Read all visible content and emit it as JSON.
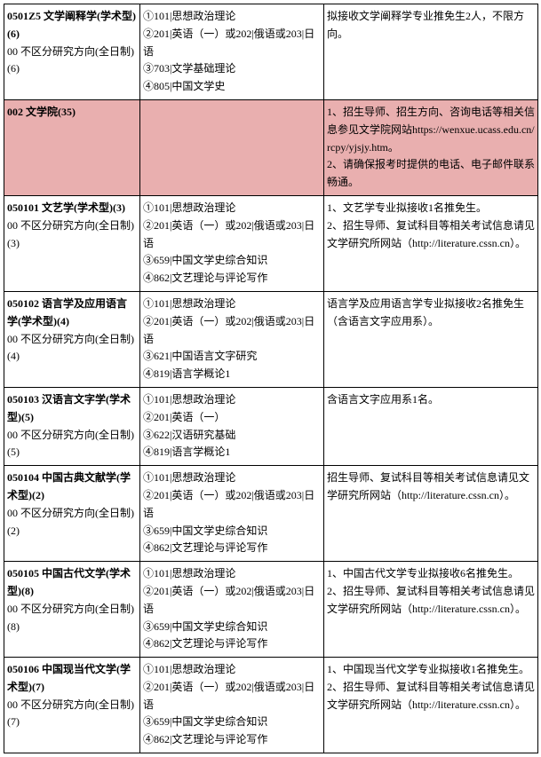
{
  "rows": [
    {
      "c1": [
        {
          "t": "0501Z5 文学阐释学(学术型)(6)",
          "b": true
        },
        {
          "t": "00 不区分研究方向(全日制)(6)",
          "b": false
        }
      ],
      "c2": [
        "①101|思想政治理论",
        "②201|英语（一）或202|俄语或203|日语",
        "③703|文学基础理论",
        "④805|中国文学史"
      ],
      "c3": [
        "拟接收文学阐释学专业推免生2人，不限方向。"
      ],
      "hl": false
    },
    {
      "c1": [
        {
          "t": "002  文学院(35)",
          "b": true
        }
      ],
      "c2": [],
      "c3": [
        "1、招生导师、招生方向、咨询电话等相关信息参见文学院网站https://wenxue.ucass.edu.cn/rcpy/yjsjy.htm。",
        "2、请确保报考时提供的电话、电子邮件联系畅通。"
      ],
      "hl": true
    },
    {
      "c1": [
        {
          "t": "050101 文艺学(学术型)(3)",
          "b": true
        },
        {
          "t": "00 不区分研究方向(全日制)(3)",
          "b": false
        }
      ],
      "c2": [
        "①101|思想政治理论",
        "②201|英语（一）或202|俄语或203|日语",
        "③659|中国文学史综合知识",
        "④862|文艺理论与评论写作"
      ],
      "c3": [
        "1、文艺学专业拟接收1名推免生。",
        "2、招生导师、复试科目等相关考试信息请见文学研究所网站（http://literature.cssn.cn）。"
      ],
      "hl": false
    },
    {
      "c1": [
        {
          "t": "050102 语言学及应用语言学(学术型)(4)",
          "b": true
        },
        {
          "t": "00 不区分研究方向(全日制)(4)",
          "b": false
        }
      ],
      "c2": [
        "①101|思想政治理论",
        "②201|英语（一）或202|俄语或203|日语",
        "③621|中国语言文字研究",
        "④819|语言学概论1"
      ],
      "c3": [
        "语言学及应用语言学专业拟接收2名推免生（含语言文字应用系）。"
      ],
      "hl": false
    },
    {
      "c1": [
        {
          "t": "050103 汉语言文字学(学术型)(5)",
          "b": true
        },
        {
          "t": "00 不区分研究方向(全日制)(5)",
          "b": false
        }
      ],
      "c2": [
        "①101|思想政治理论",
        "②201|英语（一）",
        "③622|汉语研究基础",
        "④819|语言学概论1"
      ],
      "c3": [
        "含语言文字应用系1名。"
      ],
      "hl": false
    },
    {
      "c1": [
        {
          "t": "050104 中国古典文献学(学术型)(2)",
          "b": true
        },
        {
          "t": "00 不区分研究方向(全日制)(2)",
          "b": false
        }
      ],
      "c2": [
        "①101|思想政治理论",
        "②201|英语（一）或202|俄语或203|日语",
        "③659|中国文学史综合知识",
        "④862|文艺理论与评论写作"
      ],
      "c3": [
        "招生导师、复试科目等相关考试信息请见文学研究所网站（http://literature.cssn.cn）。"
      ],
      "hl": false
    },
    {
      "c1": [
        {
          "t": "050105 中国古代文学(学术型)(8)",
          "b": true
        },
        {
          "t": "00 不区分研究方向(全日制)(8)",
          "b": false
        }
      ],
      "c2": [
        "①101|思想政治理论",
        "②201|英语（一）或202|俄语或203|日语",
        "③659|中国文学史综合知识",
        "④862|文艺理论与评论写作"
      ],
      "c3": [
        "1、中国古代文学专业拟接收6名推免生。",
        "2、招生导师、复试科目等相关考试信息请见文学研究所网站（http://literature.cssn.cn）。"
      ],
      "hl": false
    },
    {
      "c1": [
        {
          "t": "050106 中国现当代文学(学术型)(7)",
          "b": true
        },
        {
          "t": "00 不区分研究方向(全日制)(7)",
          "b": false
        }
      ],
      "c2": [
        "①101|思想政治理论",
        "②201|英语（一）或202|俄语或203|日语",
        "③659|中国文学史综合知识",
        "④862|文艺理论与评论写作"
      ],
      "c3": [
        "1、中国现当代文学专业拟接收1名推免生。",
        "2、招生导师、复试科目等相关考试信息请见文学研究所网站（http://literature.cssn.cn）。"
      ],
      "hl": false
    }
  ]
}
